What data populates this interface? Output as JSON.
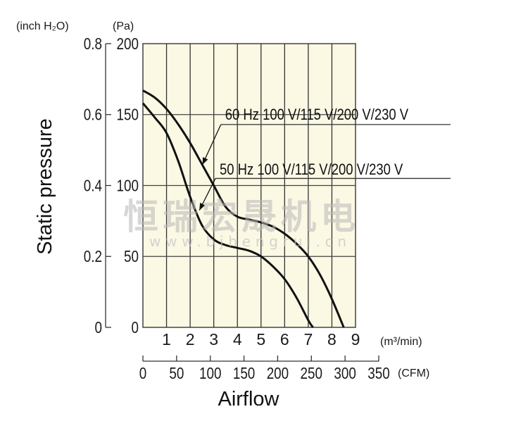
{
  "chart_data": {
    "type": "line",
    "title": "",
    "xlabel": "Airflow",
    "ylabel": "Static pressure",
    "x_unit": "(m³/min)",
    "x2_unit": "(CFM)",
    "y_unit": "(Pa)",
    "y2_unit": "(inch H₂O)",
    "xlim": [
      0,
      9
    ],
    "ylim": [
      0,
      200
    ],
    "x_ticks": [
      "1",
      "2",
      "3",
      "4",
      "5",
      "6",
      "7",
      "8",
      "9"
    ],
    "x2_ticks": [
      "0",
      "50",
      "100",
      "150",
      "200",
      "250",
      "300",
      "350"
    ],
    "y_ticks": [
      "0",
      "50",
      "100",
      "150",
      "200"
    ],
    "y2_ticks": [
      "0",
      "0.2",
      "0.4",
      "0.6",
      "0.8"
    ],
    "grid": true,
    "plot_background": "#fbf8e4",
    "series": [
      {
        "name": "60 Hz 100 V/115 V/200 V/230 V",
        "x": [
          0,
          0.5,
          1,
          1.5,
          2,
          2.5,
          3,
          3.5,
          4,
          4.5,
          5,
          5.5,
          6,
          6.5,
          7,
          7.5,
          8,
          8.5
        ],
        "y": [
          167,
          162,
          154,
          143,
          130,
          115,
          100,
          85,
          78,
          76,
          74,
          71,
          66,
          59,
          50,
          37,
          20,
          0
        ]
      },
      {
        "name": "50 Hz 100 V/115 V/200 V/230 V",
        "x": [
          0,
          0.5,
          1,
          1.5,
          2,
          2.5,
          3,
          3.5,
          4,
          4.5,
          5,
          5.5,
          6,
          6.5,
          7,
          7.2
        ],
        "y": [
          158,
          148,
          137,
          117,
          92,
          72,
          62,
          58,
          56,
          54,
          50,
          43,
          34,
          21,
          5,
          0
        ]
      }
    ]
  },
  "watermark": {
    "text": "恒瑞宏晟机电",
    "url": "www.bjhengrui.cn"
  }
}
